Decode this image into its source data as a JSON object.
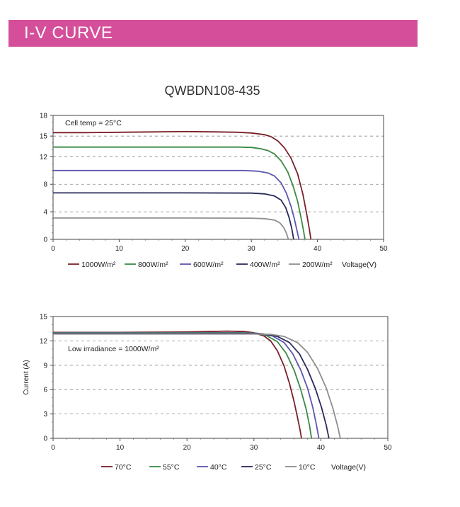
{
  "header": {
    "title": "I-V CURVE"
  },
  "product": {
    "model": "QWBDN108-435"
  },
  "chart_data": [
    {
      "type": "line",
      "annotation": "Cell temp = 25°C",
      "xlabel": "Voltage(V)",
      "ylabel": "",
      "xlim": [
        0,
        50
      ],
      "ylim": [
        0,
        18
      ],
      "xticks": [
        0,
        10,
        20,
        30,
        40,
        50
      ],
      "yticks": [
        0,
        4,
        8,
        12,
        15,
        18
      ],
      "grid": "dashed horizontal",
      "legend_position": "bottom",
      "series": [
        {
          "name": "1000W/m²",
          "color": "#7a1f28",
          "points": [
            [
              0,
              15.5
            ],
            [
              5,
              15.5
            ],
            [
              10,
              15.55
            ],
            [
              15,
              15.6
            ],
            [
              20,
              15.65
            ],
            [
              25,
              15.6
            ],
            [
              28,
              15.55
            ],
            [
              30,
              15.45
            ],
            [
              32,
              15.2
            ],
            [
              33,
              14.9
            ],
            [
              34,
              14.3
            ],
            [
              35,
              13.3
            ],
            [
              36,
              11.8
            ],
            [
              37,
              9.5
            ],
            [
              37.8,
              6.5
            ],
            [
              38.4,
              3.5
            ],
            [
              38.8,
              1.3
            ],
            [
              39,
              0
            ]
          ]
        },
        {
          "name": "800W/m²",
          "color": "#3b8a45",
          "points": [
            [
              0,
              13.4
            ],
            [
              10,
              13.4
            ],
            [
              20,
              13.4
            ],
            [
              28,
              13.4
            ],
            [
              30,
              13.35
            ],
            [
              31.5,
              13.15
            ],
            [
              32.5,
              12.9
            ],
            [
              33.5,
              12.4
            ],
            [
              34.5,
              11.4
            ],
            [
              35.5,
              9.8
            ],
            [
              36.3,
              7.8
            ],
            [
              37,
              5.5
            ],
            [
              37.5,
              3.2
            ],
            [
              37.9,
              1.2
            ],
            [
              38.1,
              0
            ]
          ]
        },
        {
          "name": "600W/m²",
          "color": "#5b57b0",
          "points": [
            [
              0,
              10
            ],
            [
              10,
              10
            ],
            [
              20,
              10
            ],
            [
              29,
              10
            ],
            [
              31,
              9.9
            ],
            [
              32.5,
              9.65
            ],
            [
              33.5,
              9.2
            ],
            [
              34.5,
              8.2
            ],
            [
              35.3,
              6.7
            ],
            [
              36,
              4.8
            ],
            [
              36.5,
              3
            ],
            [
              36.9,
              1.3
            ],
            [
              37.2,
              0
            ]
          ]
        },
        {
          "name": "400W/m²",
          "color": "#2a2a5a",
          "points": [
            [
              0,
              6.75
            ],
            [
              10,
              6.75
            ],
            [
              20,
              6.75
            ],
            [
              30,
              6.72
            ],
            [
              32,
              6.6
            ],
            [
              33.5,
              6.3
            ],
            [
              34.5,
              5.7
            ],
            [
              35.2,
              4.6
            ],
            [
              35.7,
              3.2
            ],
            [
              36.1,
              1.6
            ],
            [
              36.4,
              0
            ]
          ]
        },
        {
          "name": "200W/m²",
          "color": "#8e8e8e",
          "points": [
            [
              0,
              3.1
            ],
            [
              10,
              3.1
            ],
            [
              20,
              3.1
            ],
            [
              30,
              3.08
            ],
            [
              32,
              3.0
            ],
            [
              33.5,
              2.8
            ],
            [
              34.3,
              2.4
            ],
            [
              34.9,
              1.7
            ],
            [
              35.3,
              0.9
            ],
            [
              35.6,
              0
            ]
          ]
        }
      ]
    },
    {
      "type": "line",
      "annotation": "Low irradiance = 1000W/m²",
      "xlabel": "Voltage(V)",
      "ylabel": "Current (A)",
      "xlim": [
        0,
        50
      ],
      "ylim": [
        0,
        15
      ],
      "xticks": [
        0,
        10,
        20,
        30,
        40,
        50
      ],
      "yticks": [
        0,
        3,
        6,
        9,
        12,
        15
      ],
      "grid": "dashed horizontal",
      "legend_position": "bottom",
      "series": [
        {
          "name": "70°C",
          "color": "#7a1f28",
          "points": [
            [
              0,
              13.05
            ],
            [
              10,
              13.05
            ],
            [
              20,
              13.1
            ],
            [
              26,
              13.2
            ],
            [
              28.5,
              13.15
            ],
            [
              30,
              13.0
            ],
            [
              31.5,
              12.6
            ],
            [
              32.5,
              12.0
            ],
            [
              33.5,
              10.8
            ],
            [
              34.5,
              8.9
            ],
            [
              35.3,
              6.8
            ],
            [
              36,
              4.5
            ],
            [
              36.5,
              2.6
            ],
            [
              36.9,
              1.0
            ],
            [
              37.1,
              0
            ]
          ]
        },
        {
          "name": "55°C",
          "color": "#3b8a45",
          "points": [
            [
              0,
              13.0
            ],
            [
              10,
              13.0
            ],
            [
              20,
              13.0
            ],
            [
              28,
              13.0
            ],
            [
              30.5,
              12.95
            ],
            [
              32,
              12.6
            ],
            [
              33.5,
              11.9
            ],
            [
              34.8,
              10.5
            ],
            [
              36,
              8.4
            ],
            [
              37,
              6.0
            ],
            [
              37.8,
              3.6
            ],
            [
              38.3,
              1.6
            ],
            [
              38.6,
              0
            ]
          ]
        },
        {
          "name": "40°C",
          "color": "#5b57b0",
          "points": [
            [
              0,
              12.95
            ],
            [
              10,
              12.95
            ],
            [
              20,
              12.95
            ],
            [
              29,
              12.95
            ],
            [
              31,
              12.9
            ],
            [
              32.8,
              12.6
            ],
            [
              34.5,
              11.8
            ],
            [
              35.8,
              10.4
            ],
            [
              37,
              8.4
            ],
            [
              38,
              6.2
            ],
            [
              38.8,
              3.8
            ],
            [
              39.3,
              1.8
            ],
            [
              39.7,
              0
            ]
          ]
        },
        {
          "name": "25°C",
          "color": "#2a2a5a",
          "points": [
            [
              0,
              12.9
            ],
            [
              10,
              12.9
            ],
            [
              20,
              12.9
            ],
            [
              29,
              12.9
            ],
            [
              31.5,
              12.85
            ],
            [
              33.5,
              12.55
            ],
            [
              35.3,
              11.8
            ],
            [
              36.8,
              10.4
            ],
            [
              38,
              8.5
            ],
            [
              39.2,
              6.1
            ],
            [
              40.1,
              3.8
            ],
            [
              40.8,
              1.6
            ],
            [
              41.2,
              0
            ]
          ]
        },
        {
          "name": "10°C",
          "color": "#8e8e8e",
          "points": [
            [
              0,
              12.85
            ],
            [
              10,
              12.85
            ],
            [
              20,
              12.85
            ],
            [
              30,
              12.85
            ],
            [
              32.5,
              12.8
            ],
            [
              34.5,
              12.55
            ],
            [
              36.5,
              11.8
            ],
            [
              38,
              10.6
            ],
            [
              39.5,
              8.6
            ],
            [
              40.8,
              6.2
            ],
            [
              41.8,
              3.7
            ],
            [
              42.5,
              1.5
            ],
            [
              42.9,
              0
            ]
          ]
        }
      ]
    }
  ]
}
